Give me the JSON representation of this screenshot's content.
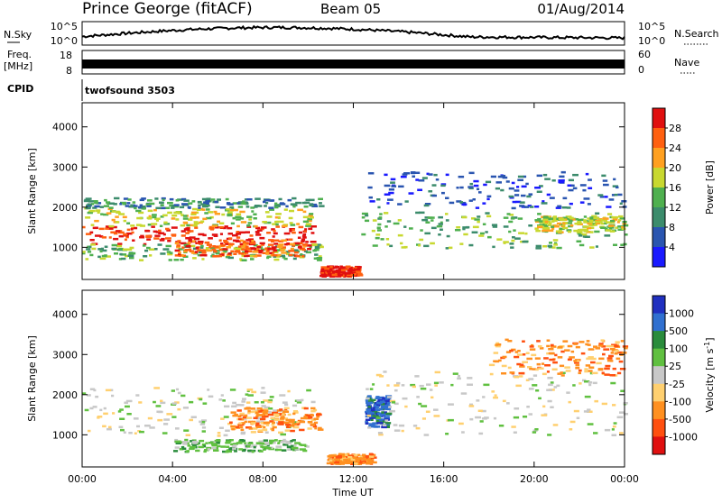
{
  "header": {
    "station": "Prince George (fitACF)",
    "beam": "Beam 05",
    "date": "01/Aug/2014"
  },
  "strip_labels": {
    "nsky": "N.Sky",
    "nsky_top": "10^5",
    "nsky_bottom": "10^0",
    "nsearch": "N.Search",
    "nsearch_top": "10^5",
    "nsearch_bottom": "10^0",
    "freq_line1": "Freq.",
    "freq_line2": "[MHz]",
    "freq_top": "18",
    "freq_bottom": "8",
    "nave": "Nave",
    "nave_top": "60",
    "nave_bottom": "0",
    "cpid": "CPID",
    "cpid_value": "twofsound 3503"
  },
  "chart_data": [
    {
      "type": "heatmap",
      "panel": "power",
      "ylabel": "Slant Range [km]",
      "ylim": [
        200,
        4600
      ],
      "yticks": [
        "1000",
        "2000",
        "3000",
        "4000"
      ],
      "xlim": [
        0,
        24
      ],
      "colorbar_label": "Power [dB]",
      "colorbar_ticks": [
        "4",
        "8",
        "12",
        "16",
        "20",
        "24",
        "28"
      ],
      "colors": [
        "#1a1aff",
        "#2a55b0",
        "#3c8c6c",
        "#4fb04f",
        "#c8d830",
        "#ffa020",
        "#ff6010",
        "#e01010"
      ],
      "bands": [
        {
          "t0": 0,
          "t1": 10.2,
          "r0": 1100,
          "r1": 1550,
          "level": 7
        },
        {
          "t0": 0,
          "t1": 10.2,
          "r0": 1550,
          "r1": 2000,
          "level": 4
        },
        {
          "t0": 0,
          "t1": 10.5,
          "r0": 700,
          "r1": 1100,
          "level": 3
        },
        {
          "t0": 0,
          "t1": 10.5,
          "r0": 2000,
          "r1": 2250,
          "level": 2
        },
        {
          "t0": 4,
          "t1": 10,
          "r0": 800,
          "r1": 1200,
          "level": 6
        },
        {
          "t0": 10.5,
          "t1": 12.2,
          "r0": 300,
          "r1": 550,
          "level": 7
        },
        {
          "t0": 12.2,
          "t1": 24,
          "r0": 1000,
          "r1": 1900,
          "level": 3
        },
        {
          "t0": 12.5,
          "t1": 24,
          "r0": 2000,
          "r1": 2900,
          "level": 1
        },
        {
          "t0": 20,
          "t1": 24,
          "r0": 1400,
          "r1": 1800,
          "level": 4
        }
      ]
    },
    {
      "type": "heatmap",
      "panel": "velocity",
      "ylabel": "Slant Range [km]",
      "ylim": [
        200,
        4600
      ],
      "yticks": [
        "1000",
        "2000",
        "3000",
        "4000"
      ],
      "xlim": [
        0,
        24
      ],
      "colorbar_label": "Velocity [m s",
      "colorbar_ticks": [
        "1000",
        "500",
        "100",
        "25",
        "-25",
        "-100",
        "-500",
        "-1000"
      ],
      "colors": [
        "#2030c0",
        "#3070d0",
        "#2a8c3c",
        "#60c040",
        "#c8c8c8",
        "#ffd070",
        "#ff9020",
        "#ff5010",
        "#e01010"
      ],
      "bands": [
        {
          "t0": 0,
          "t1": 10.2,
          "r0": 1000,
          "r1": 2200,
          "level": 4
        },
        {
          "t0": 6.5,
          "t1": 10.5,
          "r0": 1100,
          "r1": 1700,
          "level": 6
        },
        {
          "t0": 4,
          "t1": 10,
          "r0": 600,
          "r1": 900,
          "level": 3
        },
        {
          "t0": 10.8,
          "t1": 12.8,
          "r0": 300,
          "r1": 550,
          "level": 6
        },
        {
          "t0": 12.5,
          "t1": 13.5,
          "r0": 1200,
          "r1": 2000,
          "level": 1
        },
        {
          "t0": 12.5,
          "t1": 24,
          "r0": 1000,
          "r1": 2600,
          "level": 4
        },
        {
          "t0": 18,
          "t1": 24,
          "r0": 2500,
          "r1": 3400,
          "level": 6
        }
      ]
    }
  ],
  "time_axis": {
    "label": "Time UT",
    "ticks": [
      "00:00",
      "04:00",
      "08:00",
      "12:00",
      "16:00",
      "20:00",
      "00:00"
    ]
  }
}
